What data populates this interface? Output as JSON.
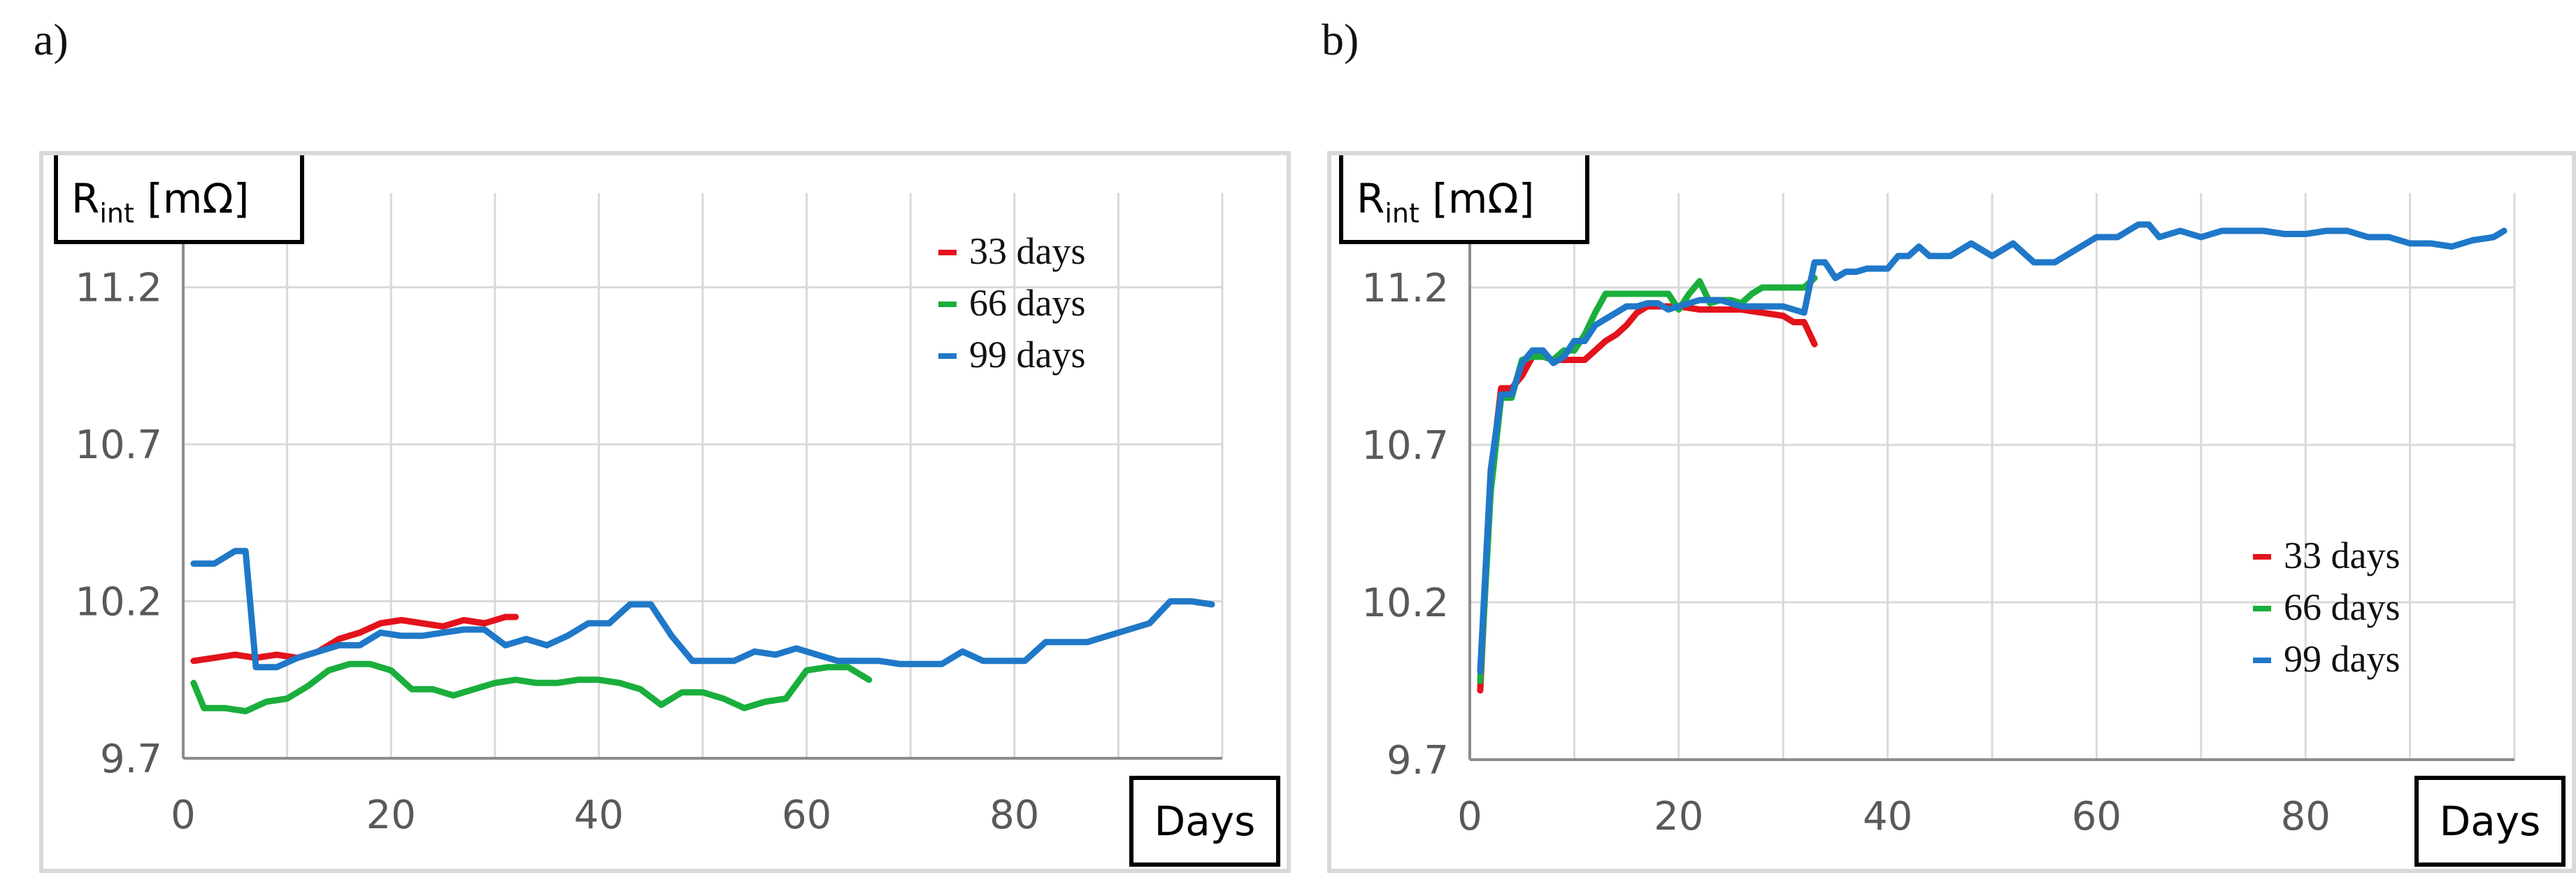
{
  "panels": {
    "a": "a)",
    "b": "b)"
  },
  "chart_data": [
    {
      "type": "line",
      "id": "a",
      "ylabel_base": "R",
      "ylabel_sub": "int",
      "ylabel_unit": " [mΩ]",
      "xlabel": "Days",
      "xlim": [
        0,
        100
      ],
      "ylim": [
        9.7,
        11.5
      ],
      "xticks": [
        0,
        20,
        40,
        60,
        80
      ],
      "yticks": [
        9.7,
        10.2,
        10.7,
        11.2
      ],
      "legend_position": "top-right",
      "series": [
        {
          "name": "33 days",
          "color": "#e3121b",
          "x": [
            1,
            3,
            5,
            7,
            9,
            11,
            13,
            15,
            17,
            19,
            21,
            23,
            25,
            27,
            29,
            31,
            32
          ],
          "y": [
            10.01,
            10.02,
            10.03,
            10.02,
            10.03,
            10.02,
            10.04,
            10.08,
            10.1,
            10.13,
            10.14,
            10.13,
            10.12,
            10.14,
            10.13,
            10.15,
            10.15
          ]
        },
        {
          "name": "66 days",
          "color": "#1aae3c",
          "x": [
            1,
            2,
            4,
            6,
            8,
            10,
            12,
            14,
            16,
            18,
            20,
            22,
            24,
            26,
            28,
            30,
            32,
            34,
            36,
            38,
            40,
            42,
            44,
            46,
            48,
            50,
            52,
            54,
            56,
            58,
            60,
            62,
            64,
            66
          ],
          "y": [
            9.94,
            9.86,
            9.86,
            9.85,
            9.88,
            9.89,
            9.93,
            9.98,
            10.0,
            10.0,
            9.98,
            9.92,
            9.92,
            9.9,
            9.92,
            9.94,
            9.95,
            9.94,
            9.94,
            9.95,
            9.95,
            9.94,
            9.92,
            9.87,
            9.91,
            9.91,
            9.89,
            9.86,
            9.88,
            9.89,
            9.98,
            9.99,
            9.99,
            9.95
          ]
        },
        {
          "name": "99 days",
          "color": "#1f78c8",
          "x": [
            1,
            3,
            5,
            6,
            7,
            9,
            11,
            13,
            15,
            17,
            19,
            21,
            23,
            25,
            27,
            29,
            31,
            33,
            35,
            37,
            39,
            41,
            43,
            45,
            47,
            49,
            51,
            53,
            55,
            57,
            59,
            61,
            63,
            65,
            67,
            69,
            71,
            73,
            75,
            77,
            79,
            81,
            83,
            85,
            87,
            89,
            91,
            93,
            95,
            97,
            99
          ],
          "y": [
            10.32,
            10.32,
            10.36,
            10.36,
            9.99,
            9.99,
            10.02,
            10.04,
            10.06,
            10.06,
            10.1,
            10.09,
            10.09,
            10.1,
            10.11,
            10.11,
            10.06,
            10.08,
            10.06,
            10.09,
            10.13,
            10.13,
            10.19,
            10.19,
            10.09,
            10.01,
            10.01,
            10.01,
            10.04,
            10.03,
            10.05,
            10.03,
            10.01,
            10.01,
            10.01,
            10.0,
            10.0,
            10.0,
            10.04,
            10.01,
            10.01,
            10.01,
            10.07,
            10.07,
            10.07,
            10.09,
            10.11,
            10.13,
            10.2,
            10.2,
            10.19
          ]
        }
      ]
    },
    {
      "type": "line",
      "id": "b",
      "ylabel_base": "R",
      "ylabel_sub": "int",
      "ylabel_unit": " [mΩ]",
      "xlabel": "Days",
      "xlim": [
        0,
        100
      ],
      "ylim": [
        9.7,
        11.5
      ],
      "xticks": [
        0,
        20,
        40,
        60,
        80
      ],
      "yticks": [
        9.7,
        10.2,
        10.7,
        11.2
      ],
      "legend_position": "bottom-right",
      "series": [
        {
          "name": "33 days",
          "color": "#e3121b",
          "x": [
            1,
            2,
            3,
            4,
            5,
            6,
            7,
            8,
            9,
            10,
            11,
            12,
            13,
            14,
            15,
            16,
            17,
            18,
            19,
            20,
            22,
            24,
            26,
            28,
            30,
            31,
            32,
            33
          ],
          "y": [
            9.92,
            10.6,
            10.88,
            10.88,
            10.92,
            10.98,
            10.98,
            10.97,
            10.97,
            10.97,
            10.97,
            11.0,
            11.03,
            11.05,
            11.08,
            11.12,
            11.14,
            11.14,
            11.14,
            11.14,
            11.13,
            11.13,
            11.13,
            11.12,
            11.11,
            11.09,
            11.09,
            11.02
          ]
        },
        {
          "name": "66 days",
          "color": "#1aae3c",
          "x": [
            1,
            2,
            3,
            4,
            5,
            6,
            7,
            8,
            9,
            10,
            11,
            12,
            13,
            14,
            15,
            16,
            17,
            18,
            19,
            20,
            21,
            22,
            23,
            24,
            25,
            26,
            27,
            28,
            29,
            30,
            31,
            32,
            33
          ],
          "y": [
            9.95,
            10.55,
            10.85,
            10.85,
            10.97,
            10.98,
            10.98,
            10.97,
            11.0,
            11.0,
            11.05,
            11.12,
            11.18,
            11.18,
            11.18,
            11.18,
            11.18,
            11.18,
            11.18,
            11.13,
            11.18,
            11.22,
            11.15,
            11.16,
            11.16,
            11.15,
            11.18,
            11.2,
            11.2,
            11.2,
            11.2,
            11.2,
            11.23
          ]
        },
        {
          "name": "99 days",
          "color": "#1f78c8",
          "x": [
            1,
            2,
            3,
            4,
            5,
            6,
            7,
            8,
            9,
            10,
            11,
            12,
            13,
            14,
            15,
            16,
            17,
            18,
            19,
            20,
            22,
            24,
            26,
            28,
            30,
            32,
            33,
            34,
            35,
            36,
            37,
            38,
            40,
            41,
            42,
            43,
            44,
            46,
            48,
            50,
            52,
            54,
            56,
            58,
            60,
            62,
            64,
            65,
            66,
            68,
            70,
            72,
            74,
            76,
            78,
            80,
            82,
            84,
            86,
            88,
            90,
            92,
            94,
            96,
            98,
            99
          ],
          "y": [
            9.98,
            10.62,
            10.86,
            10.86,
            10.96,
            11.0,
            11.0,
            10.96,
            10.98,
            11.03,
            11.03,
            11.08,
            11.1,
            11.12,
            11.14,
            11.14,
            11.15,
            11.15,
            11.13,
            11.14,
            11.16,
            11.16,
            11.14,
            11.14,
            11.14,
            11.12,
            11.28,
            11.28,
            11.23,
            11.25,
            11.25,
            11.26,
            11.26,
            11.3,
            11.3,
            11.33,
            11.3,
            11.3,
            11.34,
            11.3,
            11.34,
            11.28,
            11.28,
            11.32,
            11.36,
            11.36,
            11.4,
            11.4,
            11.36,
            11.38,
            11.36,
            11.38,
            11.38,
            11.38,
            11.37,
            11.37,
            11.38,
            11.38,
            11.36,
            11.36,
            11.34,
            11.34,
            11.33,
            11.35,
            11.36,
            11.38
          ]
        }
      ]
    }
  ]
}
